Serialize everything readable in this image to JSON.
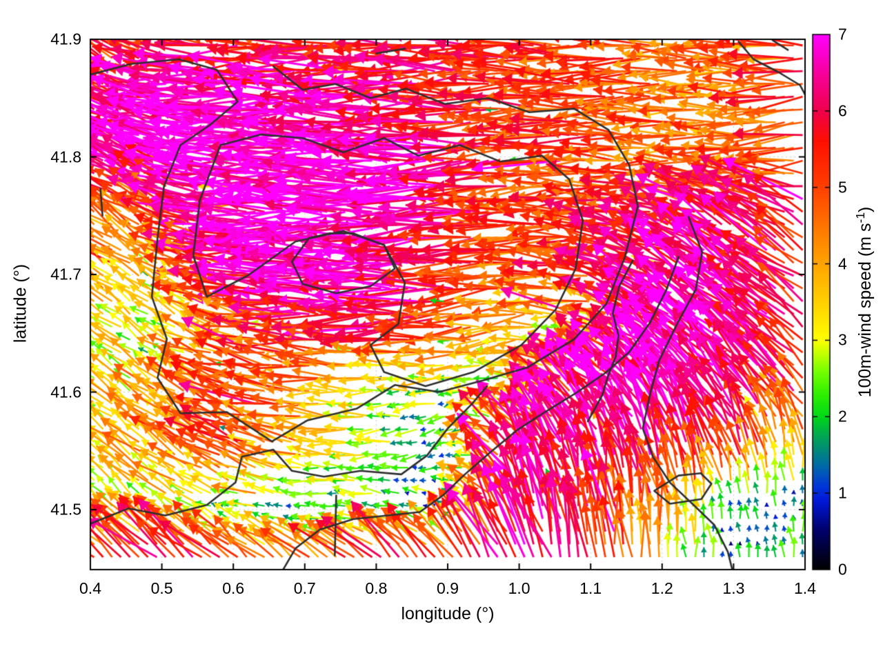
{
  "chart_data": {
    "type": "quiver",
    "title": "",
    "xlabel": "longitude (°)",
    "ylabel": "latitude (°)",
    "xlim": [
      0.4,
      1.4
    ],
    "ylim": [
      41.449,
      41.9
    ],
    "xticks": [
      {
        "label": "0.4",
        "v": 0.4
      },
      {
        "label": "0.5",
        "v": 0.5
      },
      {
        "label": "0.6",
        "v": 0.6
      },
      {
        "label": "0.7",
        "v": 0.7
      },
      {
        "label": "0.8",
        "v": 0.8
      },
      {
        "label": "0.9",
        "v": 0.9
      },
      {
        "label": "1.0",
        "v": 1.0
      },
      {
        "label": "1.1",
        "v": 1.1
      },
      {
        "label": "1.2",
        "v": 1.2
      },
      {
        "label": "1.3",
        "v": 1.3
      },
      {
        "label": "1.4",
        "v": 1.4
      }
    ],
    "yticks": [
      {
        "label": "41.9",
        "v": 41.9
      },
      {
        "label": "41.8",
        "v": 41.8
      },
      {
        "label": "41.7",
        "v": 41.7
      },
      {
        "label": "41.6",
        "v": 41.6
      },
      {
        "label": "41.5",
        "v": 41.5
      }
    ],
    "grid": "dotted",
    "grid_color": "#c9c9c9",
    "contour_color": "#2e2e2e",
    "colorbar": {
      "label_main": "100m-wind speed (m s",
      "label_sup": "-1",
      "label_close": ")",
      "range": [
        0,
        7
      ],
      "ticks": [
        {
          "label": "7",
          "v": 7
        },
        {
          "label": "6",
          "v": 6
        },
        {
          "label": "5",
          "v": 5
        },
        {
          "label": "4",
          "v": 4
        },
        {
          "label": "3",
          "v": 3
        },
        {
          "label": "2",
          "v": 2
        },
        {
          "label": "1",
          "v": 1
        },
        {
          "label": "0",
          "v": 0
        }
      ],
      "stops": [
        [
          0,
          "#000000"
        ],
        [
          0.5,
          "#000068"
        ],
        [
          0.9,
          "#0018d8"
        ],
        [
          1.1,
          "#0038d8"
        ],
        [
          1.35,
          "#0068a8"
        ],
        [
          1.6,
          "#009070"
        ],
        [
          1.8,
          "#00b048"
        ],
        [
          2.0,
          "#00d818"
        ],
        [
          2.3,
          "#30f000"
        ],
        [
          2.6,
          "#78ff00"
        ],
        [
          3.0,
          "#ffff00"
        ],
        [
          3.5,
          "#ffd000"
        ],
        [
          4.0,
          "#ffa400"
        ],
        [
          4.5,
          "#ff7400"
        ],
        [
          5.0,
          "#ff4000"
        ],
        [
          5.6,
          "#ff0f00"
        ],
        [
          6.0,
          "#ef004c"
        ],
        [
          6.5,
          "#f8009e"
        ],
        [
          7,
          "#ff00ff"
        ]
      ]
    },
    "field": {
      "lon": [
        0.4,
        0.5,
        0.6,
        0.7,
        0.8,
        0.9,
        1.0,
        1.1,
        1.2,
        1.3,
        1.4
      ],
      "lat": [
        41.9,
        41.85,
        41.8,
        41.75,
        41.7,
        41.65,
        41.6,
        41.55,
        41.5,
        41.45
      ],
      "speed": [
        [
          4.6,
          5.2,
          6.0,
          5.2,
          5.5,
          6.0,
          5.4,
          5.0,
          4.6,
          4.2,
          5.0
        ],
        [
          5.6,
          6.6,
          7.0,
          6.8,
          6.5,
          5.6,
          5.2,
          5.0,
          4.6,
          4.4,
          5.2
        ],
        [
          6.6,
          7.0,
          7.0,
          7.0,
          7.0,
          6.5,
          5.4,
          5.0,
          4.6,
          4.5,
          5.0
        ],
        [
          4.6,
          4.2,
          7.0,
          7.0,
          7.0,
          6.4,
          4.9,
          5.2,
          5.6,
          6.2,
          5.6
        ],
        [
          4.3,
          3.0,
          5.6,
          7.0,
          6.8,
          5.6,
          4.6,
          5.4,
          6.3,
          6.6,
          5.5
        ],
        [
          3.3,
          2.6,
          4.4,
          5.4,
          5.6,
          5.2,
          3.6,
          3.0,
          6.5,
          6.8,
          5.6
        ],
        [
          3.0,
          4.0,
          5.2,
          4.2,
          2.8,
          2.2,
          2.8,
          6.6,
          6.8,
          6.5,
          5.3
        ],
        [
          3.0,
          4.2,
          5.0,
          4.0,
          2.4,
          1.5,
          6.4,
          6.8,
          6.6,
          5.4,
          3.8
        ],
        [
          2.4,
          3.2,
          1.8,
          1.6,
          2.0,
          1.1,
          6.4,
          5.6,
          4.5,
          1.3,
          1.6
        ],
        [
          6.3,
          6.5,
          6.2,
          5.0,
          6.4,
          6.6,
          6.5,
          5.5,
          3.4,
          1.0,
          2.0
        ]
      ],
      "dir_deg": [
        [
          135,
          168,
          180,
          180,
          180,
          183,
          180,
          180,
          180,
          180,
          180
        ],
        [
          150,
          170,
          180,
          180,
          180,
          180,
          180,
          180,
          180,
          180,
          184
        ],
        [
          150,
          165,
          180,
          180,
          180,
          184,
          184,
          180,
          180,
          180,
          188
        ],
        [
          143,
          150,
          180,
          180,
          180,
          184,
          184,
          180,
          167,
          152,
          150
        ],
        [
          140,
          150,
          175,
          180,
          180,
          184,
          185,
          170,
          152,
          146,
          145
        ],
        [
          140,
          145,
          165,
          175,
          180,
          184,
          188,
          172,
          142,
          136,
          140
        ],
        [
          140,
          150,
          163,
          175,
          180,
          190,
          162,
          131,
          126,
          130,
          133
        ],
        [
          140,
          145,
          155,
          170,
          185,
          200,
          121,
          116,
          114,
          110,
          100
        ],
        [
          136,
          140,
          160,
          178,
          170,
          150,
          111,
          101,
          94,
          98,
          95
        ],
        [
          140,
          139,
          135,
          136,
          126,
          120,
          114,
          100,
          94,
          90,
          96
        ]
      ],
      "noise": {
        "speed": 0.95,
        "dir_deg": 13,
        "seed": 1337
      }
    },
    "contours_lonlat": [
      [
        [
          0.4,
          41.87
        ],
        [
          0.457,
          41.879
        ],
        [
          0.524,
          41.883
        ],
        [
          0.577,
          41.874
        ],
        [
          0.606,
          41.847
        ],
        [
          0.567,
          41.827
        ],
        [
          0.526,
          41.81
        ],
        [
          0.503,
          41.775
        ],
        [
          0.494,
          41.731
        ],
        [
          0.486,
          41.681
        ],
        [
          0.507,
          41.645
        ],
        [
          0.494,
          41.612
        ],
        [
          0.526,
          41.582
        ],
        [
          0.591,
          41.583
        ],
        [
          0.654,
          41.558
        ],
        [
          0.704,
          41.576
        ],
        [
          0.773,
          41.586
        ],
        [
          0.826,
          41.606
        ],
        [
          0.888,
          41.6
        ],
        [
          0.95,
          41.61
        ],
        [
          1.012,
          41.621
        ],
        [
          1.077,
          41.645
        ],
        [
          1.122,
          41.675
        ],
        [
          1.148,
          41.715
        ],
        [
          1.166,
          41.758
        ],
        [
          1.154,
          41.793
        ],
        [
          1.125,
          41.823
        ],
        [
          1.077,
          41.841
        ],
        [
          1.014,
          41.838
        ],
        [
          0.957,
          41.85
        ],
        [
          0.896,
          41.845
        ],
        [
          0.842,
          41.858
        ],
        [
          0.792,
          41.85
        ],
        [
          0.743,
          41.862
        ],
        [
          0.697,
          41.857
        ],
        [
          0.656,
          41.877
        ]
      ],
      [
        [
          0.582,
          41.81
        ],
        [
          0.553,
          41.763
        ],
        [
          0.544,
          41.716
        ],
        [
          0.563,
          41.681
        ],
        [
          0.62,
          41.699
        ],
        [
          0.687,
          41.728
        ],
        [
          0.754,
          41.737
        ],
        [
          0.811,
          41.725
        ],
        [
          0.84,
          41.693
        ],
        [
          0.831,
          41.658
        ],
        [
          0.792,
          41.64
        ],
        [
          0.811,
          41.617
        ],
        [
          0.869,
          41.605
        ],
        [
          0.936,
          41.617
        ],
        [
          1.003,
          41.64
        ],
        [
          1.051,
          41.67
        ],
        [
          1.079,
          41.705
        ],
        [
          1.089,
          41.746
        ],
        [
          1.07,
          41.781
        ],
        [
          1.032,
          41.801
        ],
        [
          0.974,
          41.796
        ],
        [
          0.917,
          41.81
        ],
        [
          0.859,
          41.801
        ],
        [
          0.811,
          41.816
        ],
        [
          0.754,
          41.804
        ],
        [
          0.697,
          41.816
        ],
        [
          0.639,
          41.819
        ],
        [
          0.582,
          41.81
        ]
      ],
      [
        [
          0.706,
          41.731
        ],
        [
          0.682,
          41.711
        ],
        [
          0.697,
          41.692
        ],
        [
          0.744,
          41.684
        ],
        [
          0.792,
          41.69
        ],
        [
          0.826,
          41.705
        ],
        [
          0.811,
          41.725
        ],
        [
          0.768,
          41.735
        ],
        [
          0.735,
          41.735
        ],
        [
          0.706,
          41.731
        ]
      ],
      [
        [
          0.4,
          41.488
        ],
        [
          0.453,
          41.501
        ],
        [
          0.505,
          41.495
        ],
        [
          0.563,
          41.504
        ],
        [
          0.603,
          41.523
        ],
        [
          0.612,
          41.545
        ],
        [
          0.656,
          41.551
        ],
        [
          0.682,
          41.533
        ],
        [
          0.727,
          41.528
        ],
        [
          0.778,
          41.533
        ],
        [
          0.835,
          41.53
        ],
        [
          0.871,
          41.546
        ],
        [
          0.9,
          41.569
        ],
        [
          0.934,
          41.59
        ],
        [
          0.955,
          41.605
        ]
      ],
      [
        [
          0.663,
          41.442
        ],
        [
          0.687,
          41.467
        ],
        [
          0.721,
          41.483
        ],
        [
          0.768,
          41.492
        ],
        [
          0.816,
          41.495
        ],
        [
          0.861,
          41.498
        ],
        [
          0.893,
          41.512
        ],
        [
          0.924,
          41.53
        ],
        [
          0.96,
          41.549
        ],
        [
          0.998,
          41.568
        ],
        [
          1.036,
          41.583
        ],
        [
          1.079,
          41.599
        ],
        [
          1.12,
          41.616
        ],
        [
          1.154,
          41.634
        ],
        [
          1.183,
          41.659
        ],
        [
          1.206,
          41.687
        ],
        [
          1.223,
          41.715
        ]
      ],
      [
        [
          1.159,
          41.712
        ],
        [
          1.14,
          41.69
        ],
        [
          1.131,
          41.667
        ],
        [
          1.139,
          41.648
        ],
        [
          1.135,
          41.63
        ],
        [
          1.124,
          41.613
        ],
        [
          1.116,
          41.597
        ],
        [
          1.096,
          41.575
        ]
      ],
      [
        [
          1.237,
          41.749
        ],
        [
          1.256,
          41.719
        ],
        [
          1.247,
          41.687
        ],
        [
          1.221,
          41.658
        ],
        [
          1.196,
          41.627
        ],
        [
          1.183,
          41.598
        ],
        [
          1.173,
          41.569
        ],
        [
          1.187,
          41.545
        ],
        [
          1.211,
          41.523
        ],
        [
          1.244,
          41.504
        ],
        [
          1.273,
          41.487
        ],
        [
          1.292,
          41.464
        ],
        [
          1.301,
          41.442
        ]
      ],
      [
        [
          1.223,
          41.529
        ],
        [
          1.254,
          41.531
        ],
        [
          1.269,
          41.522
        ],
        [
          1.255,
          41.509
        ],
        [
          1.211,
          41.505
        ],
        [
          1.189,
          41.516
        ],
        [
          1.223,
          41.529
        ]
      ],
      [
        [
          1.307,
          41.898
        ],
        [
          1.328,
          41.883
        ],
        [
          1.363,
          41.872
        ],
        [
          1.393,
          41.861
        ],
        [
          1.407,
          41.845
        ]
      ],
      [
        [
          1.355,
          41.899
        ],
        [
          1.376,
          41.891
        ]
      ],
      [
        [
          0.8,
          41.888
        ],
        [
          0.84,
          41.892
        ]
      ],
      [
        [
          0.414,
          41.773
        ],
        [
          0.417,
          41.75
        ]
      ],
      [
        [
          0.744,
          41.512
        ],
        [
          0.742,
          41.461
        ]
      ]
    ]
  }
}
